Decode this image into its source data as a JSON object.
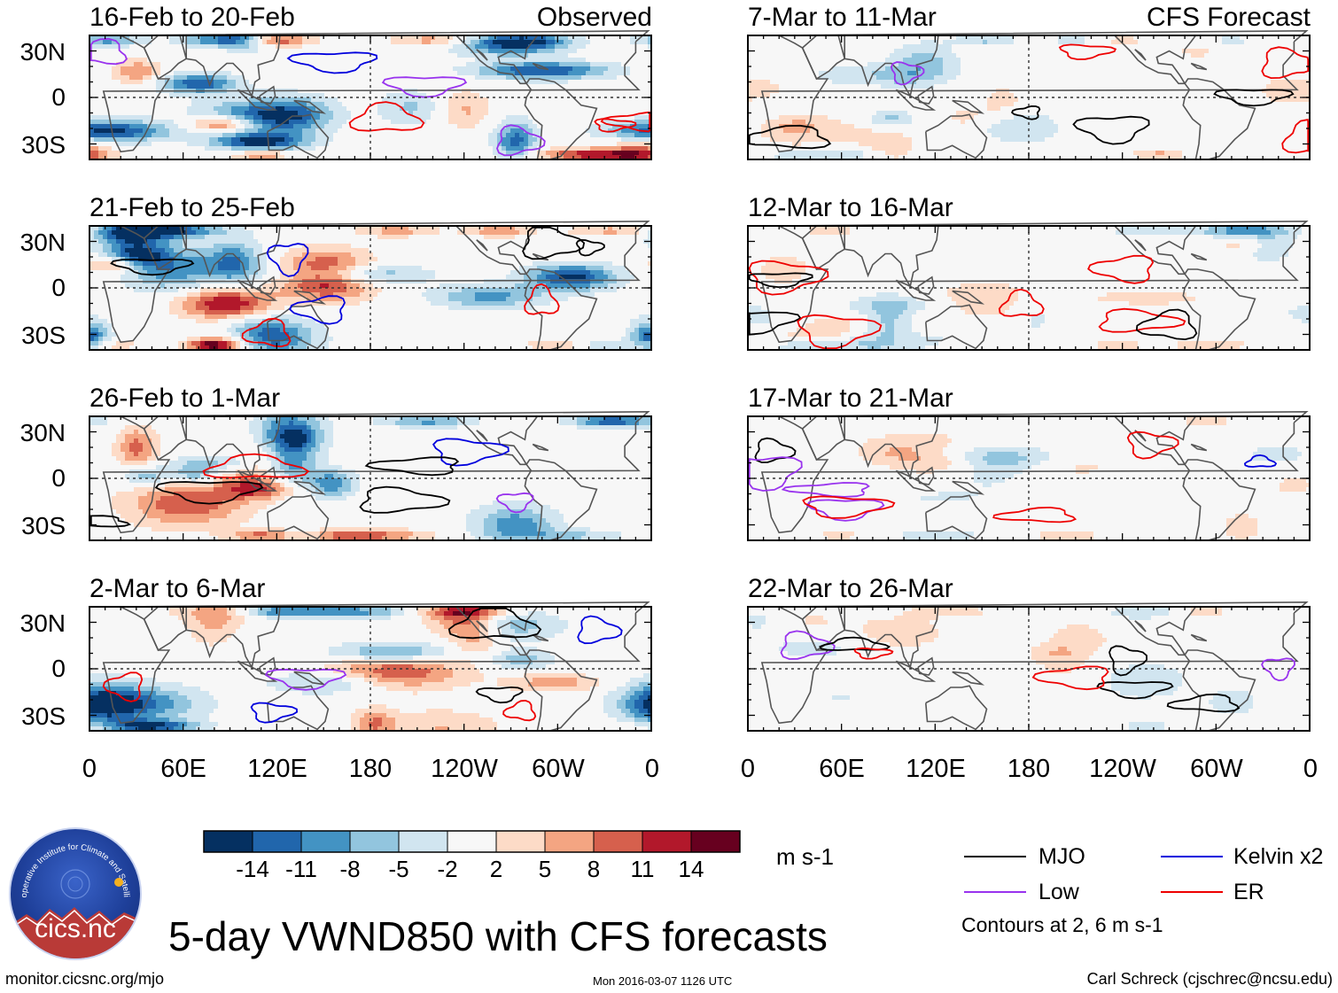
{
  "figure": {
    "main_title": "5-day VWND850 with CFS forecasts",
    "website": "monitor.cicsnc.org/mjo",
    "timestamp": "Mon 2016-03-07 1126 UTC",
    "credit": "Carl Schreck (cjschrec@ncsu.edu)",
    "logo_text": "cics.nc",
    "logo_arc_text": "Cooperative Institute for Climate and Satellites"
  },
  "columns": [
    {
      "label": "Observed"
    },
    {
      "label": "CFS Forecast"
    }
  ],
  "panels": [
    {
      "title": "16-Feb to 20-Feb",
      "col": 0,
      "row": 0,
      "seed": 11,
      "amp": 1.0
    },
    {
      "title": "21-Feb to 25-Feb",
      "col": 0,
      "row": 1,
      "seed": 23,
      "amp": 1.0
    },
    {
      "title": "26-Feb to 1-Mar",
      "col": 0,
      "row": 2,
      "seed": 37,
      "amp": 0.65
    },
    {
      "title": "2-Mar to 6-Mar",
      "col": 0,
      "row": 3,
      "seed": 41,
      "amp": 0.7
    },
    {
      "title": "7-Mar to 11-Mar",
      "col": 1,
      "row": 0,
      "seed": 53,
      "amp": 0.45
    },
    {
      "title": "12-Mar to 16-Mar",
      "col": 1,
      "row": 1,
      "seed": 67,
      "amp": 0.35
    },
    {
      "title": "17-Mar to 21-Mar",
      "col": 1,
      "row": 2,
      "seed": 71,
      "amp": 0.3
    },
    {
      "title": "22-Mar to 26-Mar",
      "col": 1,
      "row": 3,
      "seed": 83,
      "amp": 0.28
    }
  ],
  "axes": {
    "lat_labels": [
      "30N",
      "0",
      "30S"
    ],
    "lat_values": [
      30,
      0,
      -30
    ],
    "lat_range": [
      -40,
      40
    ],
    "lon_labels": [
      "0",
      "60E",
      "120E",
      "180",
      "120W",
      "60W",
      "0"
    ],
    "lon_values": [
      0,
      60,
      120,
      180,
      240,
      300,
      360
    ],
    "lon_range": [
      0,
      360
    ],
    "reference_lines": {
      "equator_lat": 0,
      "dateline_lon": 180,
      "style": "dotted"
    }
  },
  "colorbar": {
    "units": "m s-1",
    "labels": [
      "-14",
      "-11",
      "-8",
      "-5",
      "-2",
      "2",
      "5",
      "8",
      "11",
      "14"
    ],
    "levels": [
      -14,
      -11,
      -8,
      -5,
      -2,
      2,
      5,
      8,
      11,
      14
    ],
    "colors": [
      "#053061",
      "#2166ac",
      "#4393c3",
      "#92c5de",
      "#d1e5f0",
      "#f7f7f7",
      "#fddbc7",
      "#f4a582",
      "#d6604d",
      "#b2182b",
      "#67001f"
    ]
  },
  "legend": {
    "items": [
      {
        "label": "MJO",
        "color": "#000000"
      },
      {
        "label": "Kelvin x2",
        "color": "#0000dd"
      },
      {
        "label": "Low",
        "color": "#9933ee"
      },
      {
        "label": "ER",
        "color": "#ee0000"
      }
    ],
    "note": "Contours at 2, 6 m s-1"
  },
  "colors": {
    "land_outline": "#555555",
    "frame": "#000000"
  }
}
